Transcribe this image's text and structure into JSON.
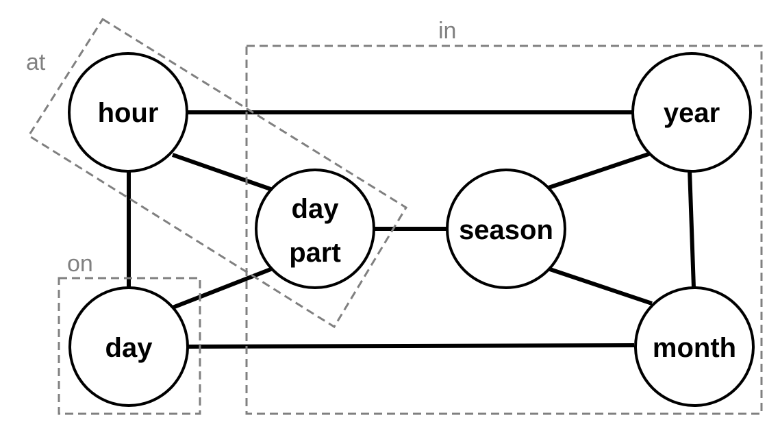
{
  "groups": {
    "at": {
      "label": "at"
    },
    "on": {
      "label": "on"
    },
    "in": {
      "label": "in"
    }
  },
  "nodes": {
    "hour": {
      "label": "hour"
    },
    "year": {
      "label": "year"
    },
    "day_part": {
      "label_line1": "day",
      "label_line2": "part"
    },
    "season": {
      "label": "season"
    },
    "day": {
      "label": "day"
    },
    "month": {
      "label": "month"
    }
  },
  "edges": [
    [
      "hour",
      "year"
    ],
    [
      "hour",
      "day_part"
    ],
    [
      "hour",
      "day"
    ],
    [
      "day_part",
      "season"
    ],
    [
      "day_part",
      "day"
    ],
    [
      "season",
      "year"
    ],
    [
      "season",
      "month"
    ],
    [
      "year",
      "month"
    ],
    [
      "day",
      "month"
    ]
  ],
  "colors": {
    "edge": "#000000",
    "node_stroke": "#000000",
    "group_outline": "#808080"
  }
}
